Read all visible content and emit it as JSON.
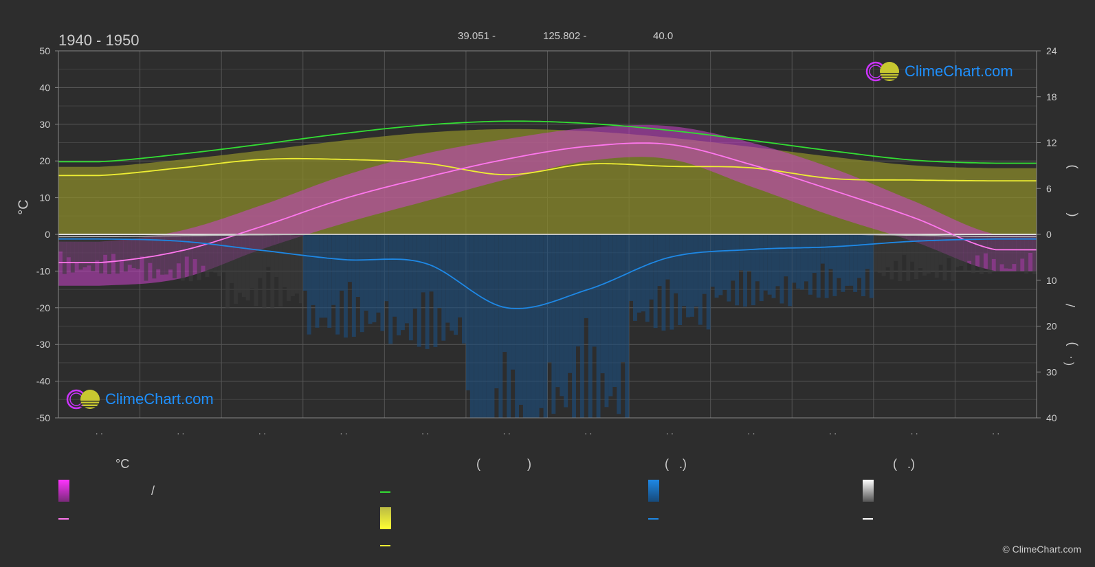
{
  "header": {
    "period": "1940 - 1950",
    "lat": "39.051 -",
    "lon": "125.802 -",
    "elevation": "40.0"
  },
  "axes": {
    "left_unit": "°C",
    "right_top_paren_open": ")",
    "right_top_paren_close": "(",
    "right_bottom_slash": "/",
    "right_bottom_paren_close": ")",
    "right_bottom_dot": "( .",
    "left_ticks": [
      "50",
      "40",
      "30",
      "20",
      "10",
      "0",
      "-10",
      "-20",
      "-30",
      "-40",
      "-50"
    ],
    "right_top_ticks": [
      "24",
      "18",
      "12",
      "6",
      "0"
    ],
    "right_bottom_ticks": [
      "10",
      "20",
      "30",
      "40"
    ],
    "month_labels": [
      ". .",
      ". .",
      ". .",
      ". .",
      ". .",
      ". .",
      ". .",
      ". .",
      ". .",
      ". .",
      ". .",
      ". ."
    ]
  },
  "legend": {
    "col1_header": "°C",
    "col1_slash": "/",
    "col2_header_open": "(",
    "col2_header_close": ")",
    "col3_header": "(   .)",
    "col4_header": "(   .)"
  },
  "colors": {
    "background": "#2d2d2d",
    "temp_band": "#cc33cc",
    "temp_mean": "#ff77ee",
    "daylight": "#33dd33",
    "sunshine_band": "#aaaa33",
    "sunshine_mean": "#eeee33",
    "rain": "#1e88e5",
    "snow": "#ffffff"
  },
  "logo_text": "ClimeChart.com",
  "copyright": "© ClimeChart.com",
  "chart_data": {
    "type": "line",
    "x": [
      "Jan",
      "Feb",
      "Mar",
      "Apr",
      "May",
      "Jun",
      "Jul",
      "Aug",
      "Sep",
      "Oct",
      "Nov",
      "Dec"
    ],
    "ylim_left": [
      -50,
      50
    ],
    "ylim_right_top": [
      0,
      24
    ],
    "ylim_right_bottom": [
      0,
      40
    ],
    "series": [
      {
        "key": "daylight",
        "values": [
          9.5,
          10.5,
          11.8,
          13.2,
          14.3,
          14.8,
          14.5,
          13.6,
          12.3,
          10.9,
          9.7,
          9.3
        ]
      },
      {
        "key": "sunshine_mean",
        "values": [
          7.7,
          8.7,
          9.8,
          9.8,
          9.3,
          7.8,
          9.2,
          8.9,
          8.7,
          7.3,
          7.1,
          7.0
        ]
      },
      {
        "key": "temp_mean",
        "values": [
          -7.7,
          -4.5,
          2.2,
          9.7,
          15.5,
          20.5,
          24.0,
          24.5,
          19.0,
          12.0,
          4.5,
          -4.2
        ]
      },
      {
        "key": "temp_max_band",
        "values": [
          -2,
          1,
          8,
          16,
          22,
          26,
          29,
          29.5,
          25,
          18,
          9,
          0
        ]
      },
      {
        "key": "temp_min_band",
        "values": [
          -14,
          -12,
          -4,
          3,
          9,
          15,
          20,
          20.5,
          13,
          5,
          -2,
          -10
        ]
      },
      {
        "key": "rain_mean_mm",
        "values": [
          1.0,
          1.5,
          3.5,
          5.5,
          6.3,
          16.0,
          12.0,
          5.0,
          3.3,
          2.7,
          1.5,
          1.0
        ]
      },
      {
        "key": "snow_mean_mm",
        "values": [
          0.5,
          0.3,
          0.1,
          0,
          0,
          0,
          0,
          0,
          0,
          0,
          0.2,
          0.5
        ]
      }
    ]
  }
}
